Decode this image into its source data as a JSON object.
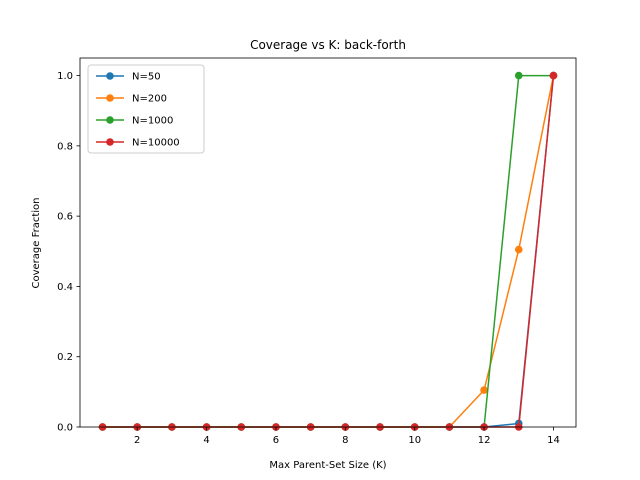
{
  "chart_data": {
    "type": "line",
    "title": "Coverage vs K: back-forth",
    "xlabel": "Max Parent-Set Size (K)",
    "ylabel": "Coverage Fraction",
    "xlim": [
      0.35,
      14.65
    ],
    "ylim": [
      0,
      1.05
    ],
    "xticks": [
      2,
      4,
      6,
      8,
      10,
      12,
      14
    ],
    "yticks": [
      0.0,
      0.2,
      0.4,
      0.6,
      0.8,
      1.0
    ],
    "grid": false,
    "legend_position": "top-left",
    "x": [
      1,
      2,
      3,
      4,
      5,
      6,
      7,
      8,
      9,
      10,
      11,
      12,
      13,
      14
    ],
    "series": [
      {
        "name": "N=50",
        "color": "#1f77b4",
        "values": [
          0,
          0,
          0,
          0,
          0,
          0,
          0,
          0,
          0,
          0,
          0,
          0,
          0.01,
          1.0
        ]
      },
      {
        "name": "N=200",
        "color": "#ff7f0e",
        "values": [
          0,
          0,
          0,
          0,
          0,
          0,
          0,
          0,
          0,
          0,
          0,
          0.105,
          0.505,
          1.0
        ]
      },
      {
        "name": "N=1000",
        "color": "#2ca02c",
        "values": [
          0,
          0,
          0,
          0,
          0,
          0,
          0,
          0,
          0,
          0,
          0,
          0,
          1.0,
          1.0
        ]
      },
      {
        "name": "N=10000",
        "color": "#d62728",
        "values": [
          0,
          0,
          0,
          0,
          0,
          0,
          0,
          0,
          0,
          0,
          0,
          0,
          0,
          1.0
        ]
      }
    ]
  }
}
